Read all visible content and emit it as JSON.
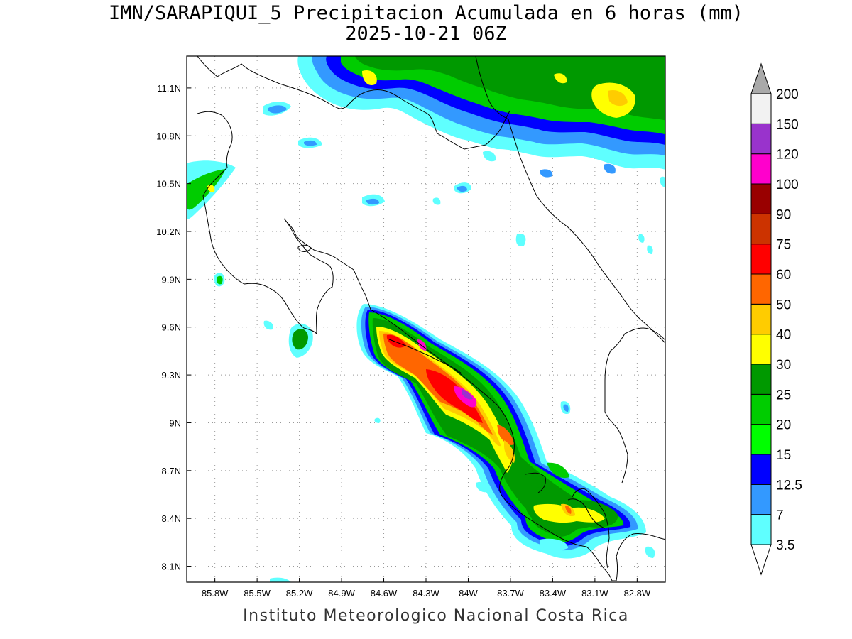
{
  "title_line1": "IMN/SARAPIQUI_5 Precipitacion Acumulada en 6 horas (mm)",
  "title_line2": "2025-10-21 06Z",
  "footer": "Instituto Meteorologico Nacional Costa Rica",
  "map": {
    "lon_range": [
      -86.0,
      -82.6
    ],
    "lat_range": [
      8.0,
      11.3
    ],
    "lon_ticks": [
      {
        "value": -85.8,
        "label": "85.8W"
      },
      {
        "value": -85.5,
        "label": "85.5W"
      },
      {
        "value": -85.2,
        "label": "85.2W"
      },
      {
        "value": -84.9,
        "label": "84.9W"
      },
      {
        "value": -84.6,
        "label": "84.6W"
      },
      {
        "value": -84.3,
        "label": "84.3W"
      },
      {
        "value": -84.0,
        "label": "84W"
      },
      {
        "value": -83.7,
        "label": "83.7W"
      },
      {
        "value": -83.4,
        "label": "83.4W"
      },
      {
        "value": -83.1,
        "label": "83.1W"
      },
      {
        "value": -82.8,
        "label": "82.8W"
      }
    ],
    "lat_ticks": [
      {
        "value": 11.1,
        "label": "11.1N"
      },
      {
        "value": 10.8,
        "label": "10.8N"
      },
      {
        "value": 10.5,
        "label": "10.5N"
      },
      {
        "value": 10.2,
        "label": "10.2N"
      },
      {
        "value": 9.9,
        "label": "9.9N"
      },
      {
        "value": 9.6,
        "label": "9.6N"
      },
      {
        "value": 9.3,
        "label": "9.3N"
      },
      {
        "value": 9.0,
        "label": "9N"
      },
      {
        "value": 8.7,
        "label": "8.7N"
      },
      {
        "value": 8.4,
        "label": "8.4N"
      },
      {
        "value": 8.1,
        "label": "8.1N"
      }
    ]
  },
  "colorbar": [
    {
      "label": "3.5",
      "color": "#5fffff"
    },
    {
      "label": "7",
      "color": "#3399ff"
    },
    {
      "label": "12.5",
      "color": "#0000ff"
    },
    {
      "label": "15",
      "color": "#00ff00"
    },
    {
      "label": "20",
      "color": "#00cc00"
    },
    {
      "label": "25",
      "color": "#009900"
    },
    {
      "label": "30",
      "color": "#ffff00"
    },
    {
      "label": "40",
      "color": "#ffcc00"
    },
    {
      "label": "50",
      "color": "#ff6600"
    },
    {
      "label": "60",
      "color": "#ff0000"
    },
    {
      "label": "75",
      "color": "#cc3300"
    },
    {
      "label": "90",
      "color": "#990000"
    },
    {
      "label": "100",
      "color": "#ff00cc"
    },
    {
      "label": "120",
      "color": "#9933cc"
    },
    {
      "label": "150",
      "color": "#f2f2f2"
    },
    {
      "label": "200",
      "color": "#a9a9a9"
    }
  ]
}
